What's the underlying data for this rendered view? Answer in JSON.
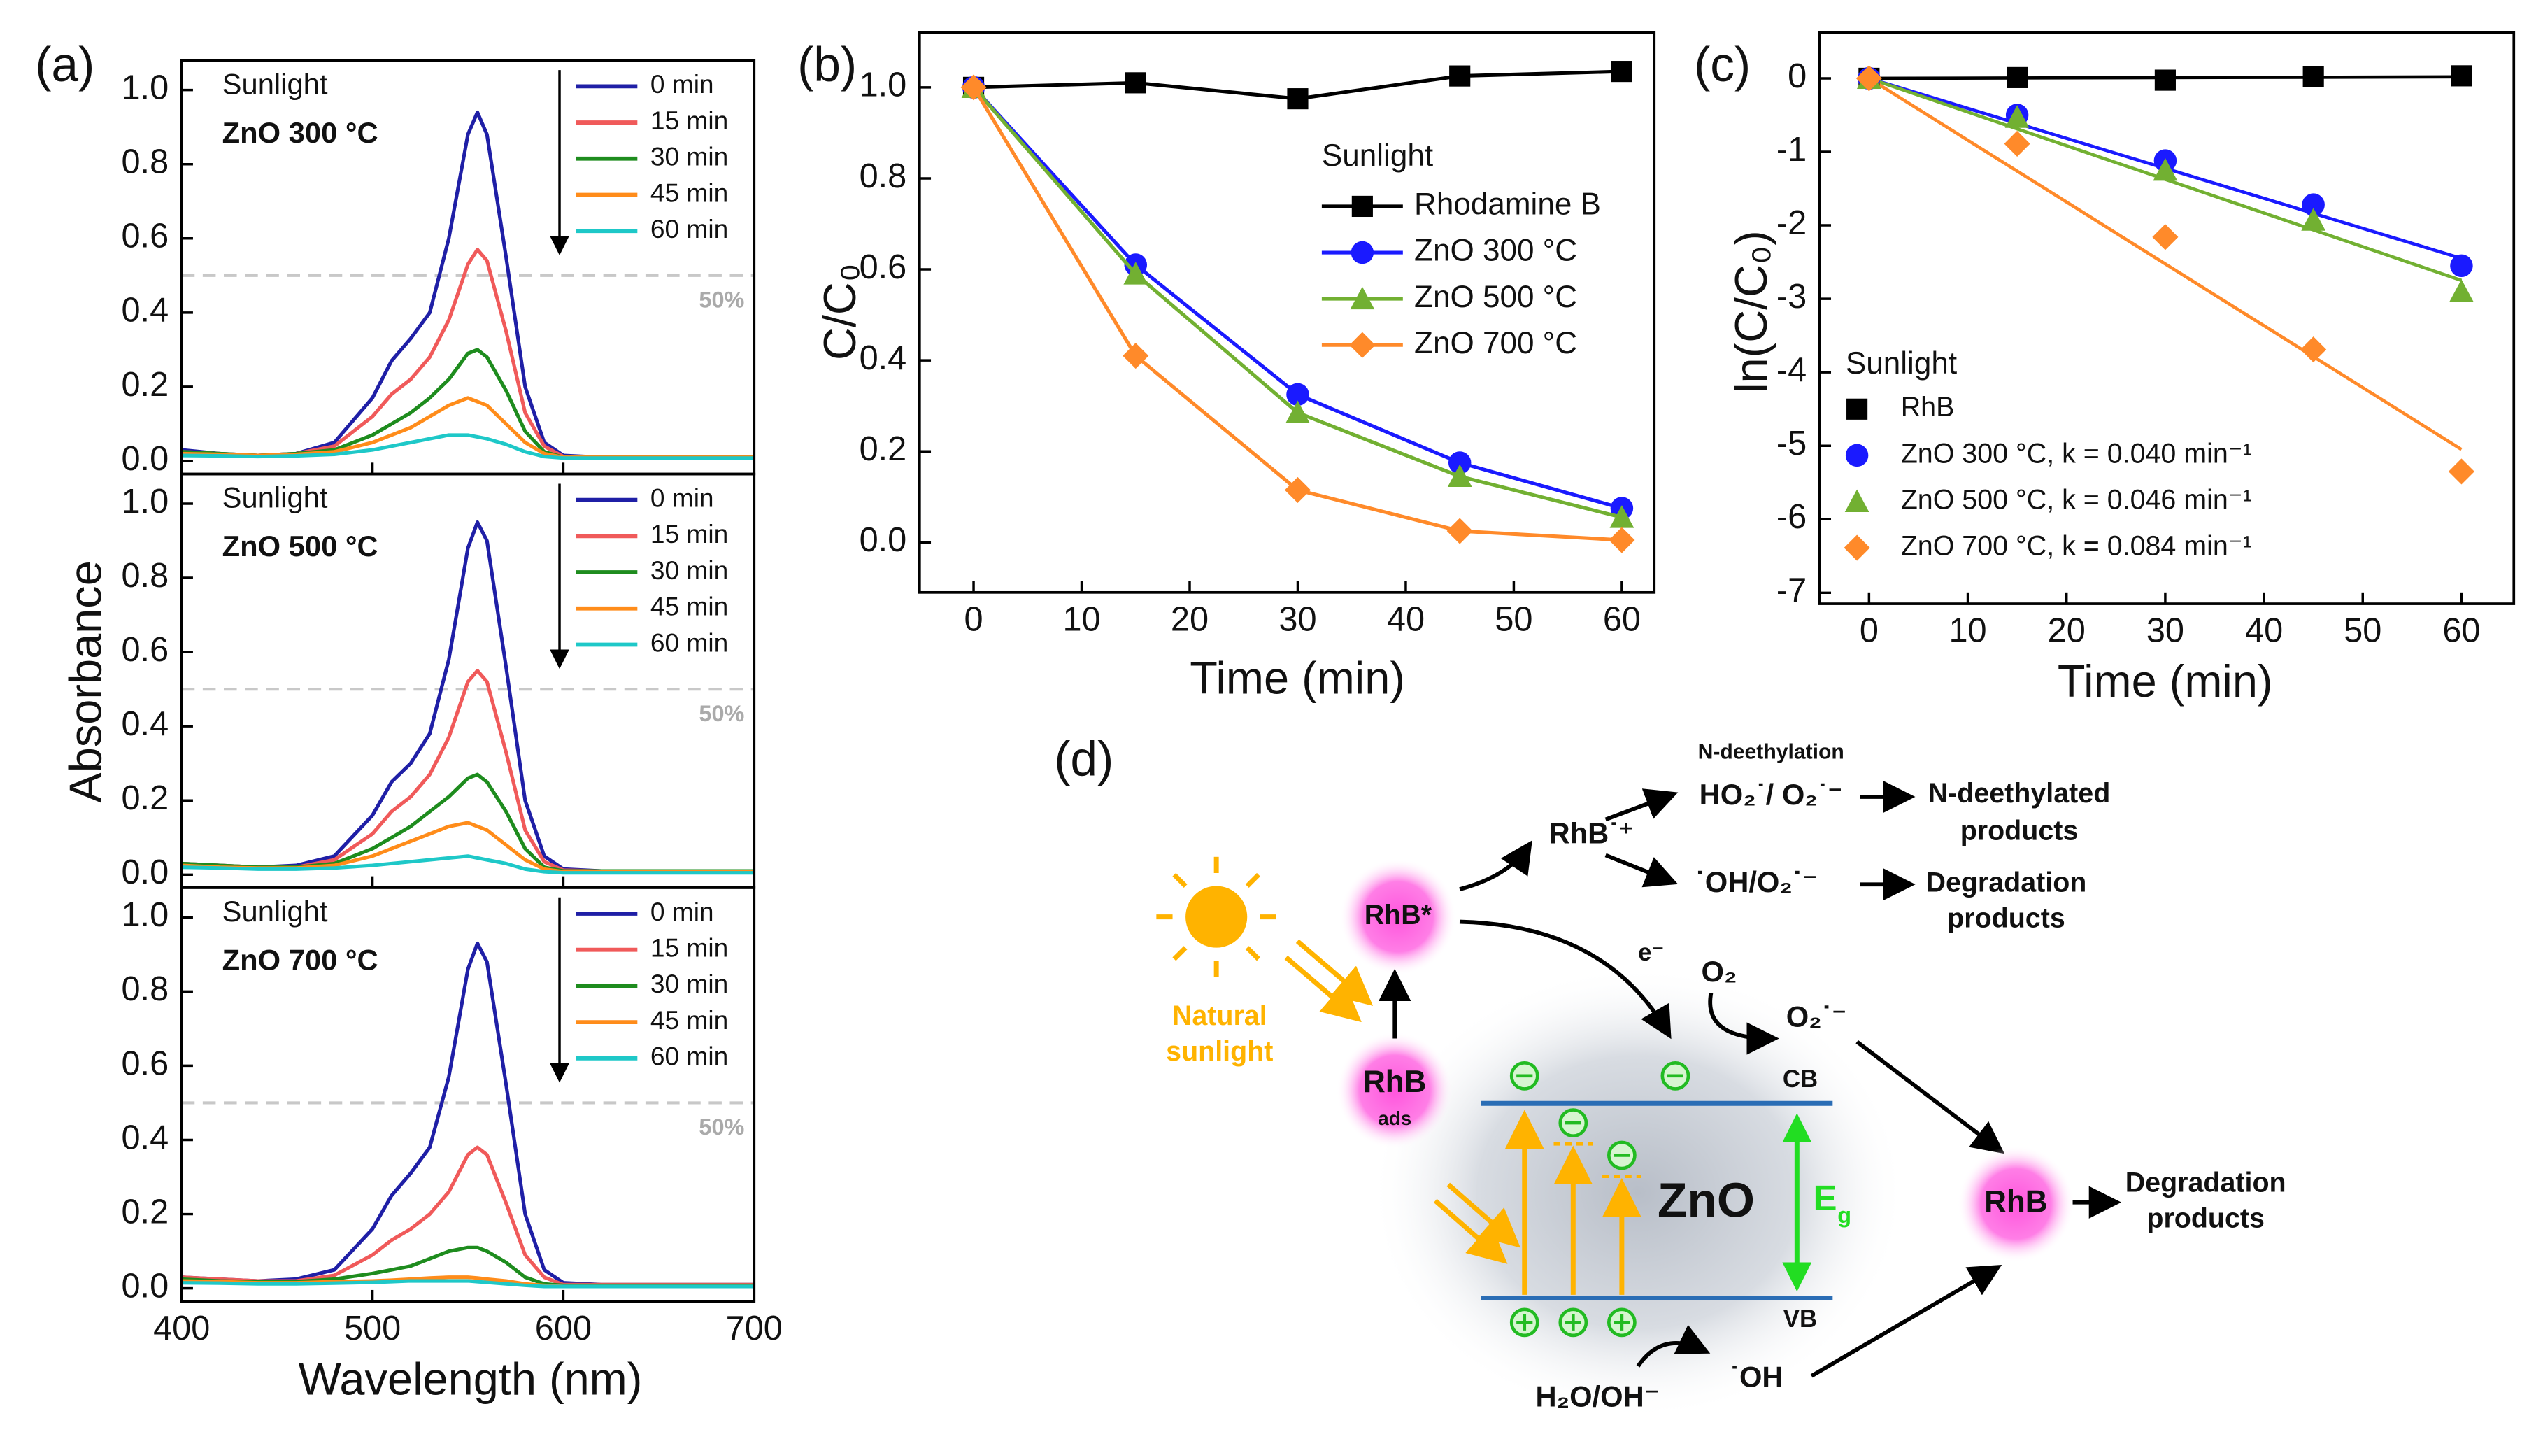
{
  "chart_data": [
    {
      "type": "line",
      "panel_label": "(a)",
      "ylabel": "Absorbance",
      "annotations": [
        "Sunlight",
        "ZnO 300 °C"
      ],
      "xlim": [
        400,
        700
      ],
      "xticks": [
        400,
        500,
        600,
        700
      ],
      "show_xtick_labels": false,
      "ylim": [
        -0.035,
        1.08
      ],
      "yticks": [
        {
          "value": 0,
          "label": "0.0"
        },
        0.2,
        0.4,
        0.6,
        0.8,
        {
          "value": 1,
          "label": "1.0"
        }
      ],
      "reference_line": {
        "value": 0.5,
        "label": "50%",
        "color": "#c8c8c8"
      },
      "x": [
        400,
        420,
        440,
        460,
        480,
        500,
        510,
        520,
        530,
        540,
        550,
        555,
        560,
        570,
        580,
        590,
        600,
        620,
        650,
        700
      ],
      "series": [
        {
          "name": "0 min",
          "color": "#1f1fa6",
          "values": [
            0.03,
            0.02,
            0.015,
            0.02,
            0.05,
            0.17,
            0.27,
            0.33,
            0.4,
            0.6,
            0.88,
            0.94,
            0.88,
            0.55,
            0.2,
            0.05,
            0.015,
            0.01,
            0.01,
            0.01
          ]
        },
        {
          "name": "15 min",
          "color": "#f05a5a",
          "values": [
            0.025,
            0.02,
            0.015,
            0.02,
            0.04,
            0.12,
            0.18,
            0.22,
            0.28,
            0.38,
            0.53,
            0.57,
            0.54,
            0.35,
            0.13,
            0.04,
            0.012,
            0.01,
            0.01,
            0.01
          ]
        },
        {
          "name": "30 min",
          "color": "#1e8c1e",
          "values": [
            0.025,
            0.02,
            0.015,
            0.02,
            0.03,
            0.07,
            0.1,
            0.13,
            0.17,
            0.22,
            0.29,
            0.3,
            0.28,
            0.19,
            0.08,
            0.025,
            0.01,
            0.01,
            0.01,
            0.01
          ]
        },
        {
          "name": "45 min",
          "color": "#ff8c1a",
          "values": [
            0.02,
            0.018,
            0.015,
            0.018,
            0.025,
            0.05,
            0.07,
            0.09,
            0.12,
            0.15,
            0.17,
            0.16,
            0.15,
            0.1,
            0.05,
            0.02,
            0.01,
            0.01,
            0.01,
            0.01
          ]
        },
        {
          "name": "60 min",
          "color": "#1ec8c8",
          "values": [
            0.015,
            0.014,
            0.012,
            0.014,
            0.018,
            0.03,
            0.04,
            0.05,
            0.06,
            0.07,
            0.07,
            0.065,
            0.06,
            0.045,
            0.025,
            0.012,
            0.008,
            0.008,
            0.008,
            0.008
          ]
        }
      ]
    },
    {
      "type": "line",
      "annotations": [
        "Sunlight",
        "ZnO 500 °C"
      ],
      "xlim": [
        400,
        700
      ],
      "xticks": [
        400,
        500,
        600,
        700
      ],
      "show_xtick_labels": false,
      "ylim": [
        -0.035,
        1.08
      ],
      "yticks": [
        {
          "value": 0,
          "label": "0.0"
        },
        0.2,
        0.4,
        0.6,
        0.8,
        {
          "value": 1,
          "label": "1.0"
        }
      ],
      "reference_line": {
        "value": 0.5,
        "label": "50%",
        "color": "#c8c8c8"
      },
      "x": [
        400,
        420,
        440,
        460,
        480,
        500,
        510,
        520,
        530,
        540,
        550,
        555,
        560,
        570,
        580,
        590,
        600,
        620,
        650,
        700
      ],
      "series": [
        {
          "name": "0 min",
          "color": "#1f1fa6",
          "values": [
            0.03,
            0.025,
            0.02,
            0.025,
            0.05,
            0.16,
            0.25,
            0.3,
            0.38,
            0.58,
            0.88,
            0.95,
            0.9,
            0.56,
            0.2,
            0.05,
            0.015,
            0.01,
            0.01,
            0.01
          ]
        },
        {
          "name": "15 min",
          "color": "#f05a5a",
          "values": [
            0.03,
            0.025,
            0.02,
            0.02,
            0.04,
            0.11,
            0.17,
            0.21,
            0.27,
            0.37,
            0.52,
            0.55,
            0.52,
            0.33,
            0.12,
            0.035,
            0.012,
            0.01,
            0.01,
            0.01
          ]
        },
        {
          "name": "30 min",
          "color": "#1e8c1e",
          "values": [
            0.03,
            0.025,
            0.02,
            0.02,
            0.03,
            0.07,
            0.1,
            0.13,
            0.17,
            0.21,
            0.26,
            0.27,
            0.25,
            0.17,
            0.07,
            0.02,
            0.01,
            0.01,
            0.01,
            0.01
          ]
        },
        {
          "name": "45 min",
          "color": "#ff8c1a",
          "values": [
            0.025,
            0.02,
            0.018,
            0.018,
            0.025,
            0.05,
            0.07,
            0.09,
            0.11,
            0.13,
            0.14,
            0.13,
            0.12,
            0.08,
            0.04,
            0.015,
            0.008,
            0.008,
            0.008,
            0.008
          ]
        },
        {
          "name": "60 min",
          "color": "#1ec8c8",
          "values": [
            0.02,
            0.018,
            0.015,
            0.015,
            0.018,
            0.025,
            0.03,
            0.035,
            0.04,
            0.045,
            0.05,
            0.045,
            0.04,
            0.03,
            0.015,
            0.008,
            0.005,
            0.005,
            0.005,
            0.005
          ]
        }
      ]
    },
    {
      "type": "line",
      "xlabel": "Wavelength (nm)",
      "annotations": [
        "Sunlight",
        "ZnO 700 °C"
      ],
      "xlim": [
        400,
        700
      ],
      "xticks": [
        400,
        500,
        600,
        700
      ],
      "ylim": [
        -0.035,
        1.08
      ],
      "yticks": [
        {
          "value": 0,
          "label": "0.0"
        },
        0.2,
        0.4,
        0.6,
        0.8,
        {
          "value": 1,
          "label": "1.0"
        }
      ],
      "reference_line": {
        "value": 0.5,
        "label": "50%",
        "color": "#c8c8c8"
      },
      "x": [
        400,
        420,
        440,
        460,
        480,
        500,
        510,
        520,
        530,
        540,
        550,
        555,
        560,
        570,
        580,
        590,
        600,
        620,
        650,
        700
      ],
      "series": [
        {
          "name": "0 min",
          "color": "#1f1fa6",
          "values": [
            0.03,
            0.025,
            0.02,
            0.025,
            0.05,
            0.16,
            0.25,
            0.31,
            0.38,
            0.57,
            0.86,
            0.93,
            0.88,
            0.55,
            0.2,
            0.05,
            0.015,
            0.01,
            0.01,
            0.01
          ]
        },
        {
          "name": "15 min",
          "color": "#f05a5a",
          "values": [
            0.03,
            0.025,
            0.02,
            0.02,
            0.035,
            0.09,
            0.13,
            0.16,
            0.2,
            0.26,
            0.36,
            0.38,
            0.36,
            0.23,
            0.09,
            0.03,
            0.01,
            0.01,
            0.01,
            0.01
          ]
        },
        {
          "name": "30 min",
          "color": "#1e8c1e",
          "values": [
            0.025,
            0.02,
            0.018,
            0.018,
            0.025,
            0.04,
            0.05,
            0.06,
            0.08,
            0.1,
            0.11,
            0.11,
            0.1,
            0.07,
            0.03,
            0.012,
            0.008,
            0.008,
            0.008,
            0.008
          ]
        },
        {
          "name": "45 min",
          "color": "#ff8c1a",
          "values": [
            0.02,
            0.018,
            0.015,
            0.015,
            0.018,
            0.02,
            0.022,
            0.025,
            0.028,
            0.03,
            0.03,
            0.028,
            0.025,
            0.02,
            0.012,
            0.008,
            0.005,
            0.005,
            0.005,
            0.005
          ]
        },
        {
          "name": "60 min",
          "color": "#1ec8c8",
          "values": [
            0.015,
            0.014,
            0.012,
            0.012,
            0.014,
            0.016,
            0.018,
            0.02,
            0.02,
            0.02,
            0.02,
            0.018,
            0.016,
            0.012,
            0.008,
            0.005,
            0.005,
            0.005,
            0.005,
            0.005
          ]
        }
      ]
    },
    {
      "type": "line",
      "panel_label": "(b)",
      "xlabel": "Time (min)",
      "ylabel": "C/C₀",
      "legend_title": "Sunlight",
      "xlim": [
        -5,
        63
      ],
      "xticks": [
        0,
        10,
        20,
        30,
        40,
        50,
        60
      ],
      "ylim": [
        -0.11,
        1.12
      ],
      "yticks": [
        {
          "value": 0,
          "label": "0.0"
        },
        0.2,
        0.4,
        0.6,
        0.8,
        {
          "value": 1,
          "label": "1.0"
        }
      ],
      "x": [
        0,
        15,
        30,
        45,
        60
      ],
      "series": [
        {
          "name": "Rhodamine B",
          "color": "#000000",
          "marker": "square",
          "values": [
            1.0,
            1.01,
            0.975,
            1.025,
            1.035
          ]
        },
        {
          "name": "ZnO 300 °C",
          "color": "#1a1aff",
          "marker": "circle",
          "values": [
            1.0,
            0.61,
            0.325,
            0.175,
            0.075
          ]
        },
        {
          "name": "ZnO 500 °C",
          "color": "#72b032",
          "marker": "triangle",
          "values": [
            1.0,
            0.59,
            0.285,
            0.145,
            0.055
          ]
        },
        {
          "name": "ZnO 700 °C",
          "color": "#ff8a2a",
          "marker": "diamond",
          "values": [
            1.0,
            0.41,
            0.115,
            0.025,
            0.005
          ]
        }
      ]
    },
    {
      "type": "scatter",
      "panel_label": "(c)",
      "xlabel": "Time (min)",
      "ylabel": "ln(C/C₀)",
      "legend_title": "Sunlight",
      "xlim": [
        -5,
        65.3
      ],
      "xticks": [
        0,
        10,
        20,
        30,
        40,
        50,
        60
      ],
      "ylim": [
        -7.15,
        0.62
      ],
      "yticks": [
        0,
        -1,
        -2,
        -3,
        -4,
        -5,
        -6,
        -7
      ],
      "x": [
        0,
        15,
        30,
        45,
        60
      ],
      "series": [
        {
          "name": "RhB",
          "color": "#000000",
          "marker": "square",
          "values": [
            0,
            0.01,
            -0.025,
            0.025,
            0.034
          ],
          "fit": {
            "x": [
              0,
              60
            ],
            "values": [
              0,
              0.02
            ]
          }
        },
        {
          "name": "ZnO 300 °C, k = 0.040 min⁻¹",
          "color": "#1a1aff",
          "marker": "circle",
          "values": [
            0,
            -0.5,
            -1.12,
            -1.72,
            -2.55
          ],
          "fit": {
            "x": [
              0,
              60
            ],
            "values": [
              0,
              -2.45
            ]
          }
        },
        {
          "name": "ZnO 500 °C, k = 0.046 min⁻¹",
          "color": "#72b032",
          "marker": "triangle",
          "values": [
            0,
            -0.53,
            -1.25,
            -1.93,
            -2.9
          ],
          "fit": {
            "x": [
              0,
              60
            ],
            "values": [
              0,
              -2.75
            ]
          }
        },
        {
          "name": "ZnO 700 °C, k = 0.084 min⁻¹",
          "color": "#ff8a2a",
          "marker": "diamond",
          "values": [
            0,
            -0.89,
            -2.16,
            -3.69,
            -5.35
          ],
          "fit": {
            "x": [
              0,
              60
            ],
            "values": [
              0,
              -5.05
            ]
          }
        }
      ]
    }
  ],
  "diagram": {
    "panel_label": "(d)",
    "natural": "Natural",
    "sunlight": "sunlight",
    "rhb_star": "RhB*",
    "rhb_ads": "RhB",
    "ads": "ads",
    "rhb_radical": "RhB˙⁺",
    "n_deethylation": "N-deethylation",
    "ho2": "HO₂˙/ O₂˙⁻",
    "n_products_1": "N-deethylated",
    "n_products_2": "products",
    "oh_o2": "˙OH/O₂˙⁻",
    "deg_1": "Degradation",
    "deg_2": "products",
    "electron": "e⁻",
    "o2": "O₂",
    "superoxide": "O₂˙⁻",
    "cb": "CB",
    "vb": "VB",
    "zno": "ZnO",
    "eg": "E",
    "eg_sub": "g",
    "rhb": "RhB",
    "deg2_1": "Degradation",
    "deg2_2": "products",
    "water": "H₂O/OH⁻",
    "hydroxyl": "˙OH"
  }
}
